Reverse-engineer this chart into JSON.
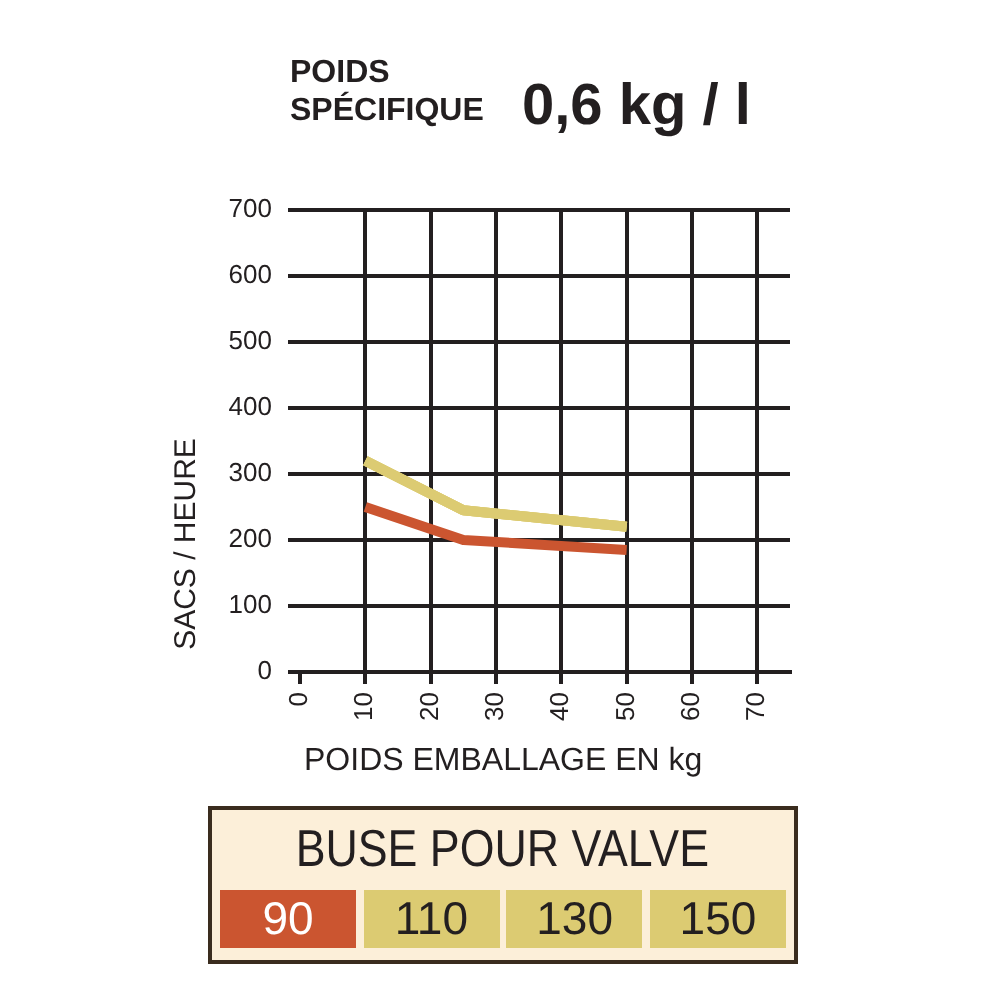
{
  "chart_data": {
    "type": "line",
    "title": "POIDS SPÉCIFIQUE",
    "subtitle": "0,6 kg / l",
    "xlabel": "POIDS EMBALLAGE EN kg",
    "ylabel": "SACS / HEURE",
    "legend_title": "BUSE POUR VALVE",
    "x": [
      10,
      25,
      50
    ],
    "series": [
      {
        "name": "90",
        "color": "#cb5530",
        "values": [
          250,
          200,
          185
        ]
      },
      {
        "name": "110",
        "color": "#dccb72",
        "values": [
          320,
          245,
          220
        ]
      },
      {
        "name": "130",
        "color": "#dccb72",
        "values": [
          320,
          245,
          220
        ]
      },
      {
        "name": "150",
        "color": "#dccb72",
        "values": [
          320,
          245,
          220
        ]
      }
    ],
    "xlim": [
      0,
      75
    ],
    "xticks": [
      0,
      10,
      20,
      30,
      40,
      50,
      60,
      70
    ],
    "ylim": [
      0,
      700
    ],
    "yticks": [
      0,
      100,
      200,
      300,
      400,
      500,
      600,
      700
    ],
    "grid": true,
    "legend": "bottom",
    "marker": "none",
    "line_style": "solid"
  }
}
